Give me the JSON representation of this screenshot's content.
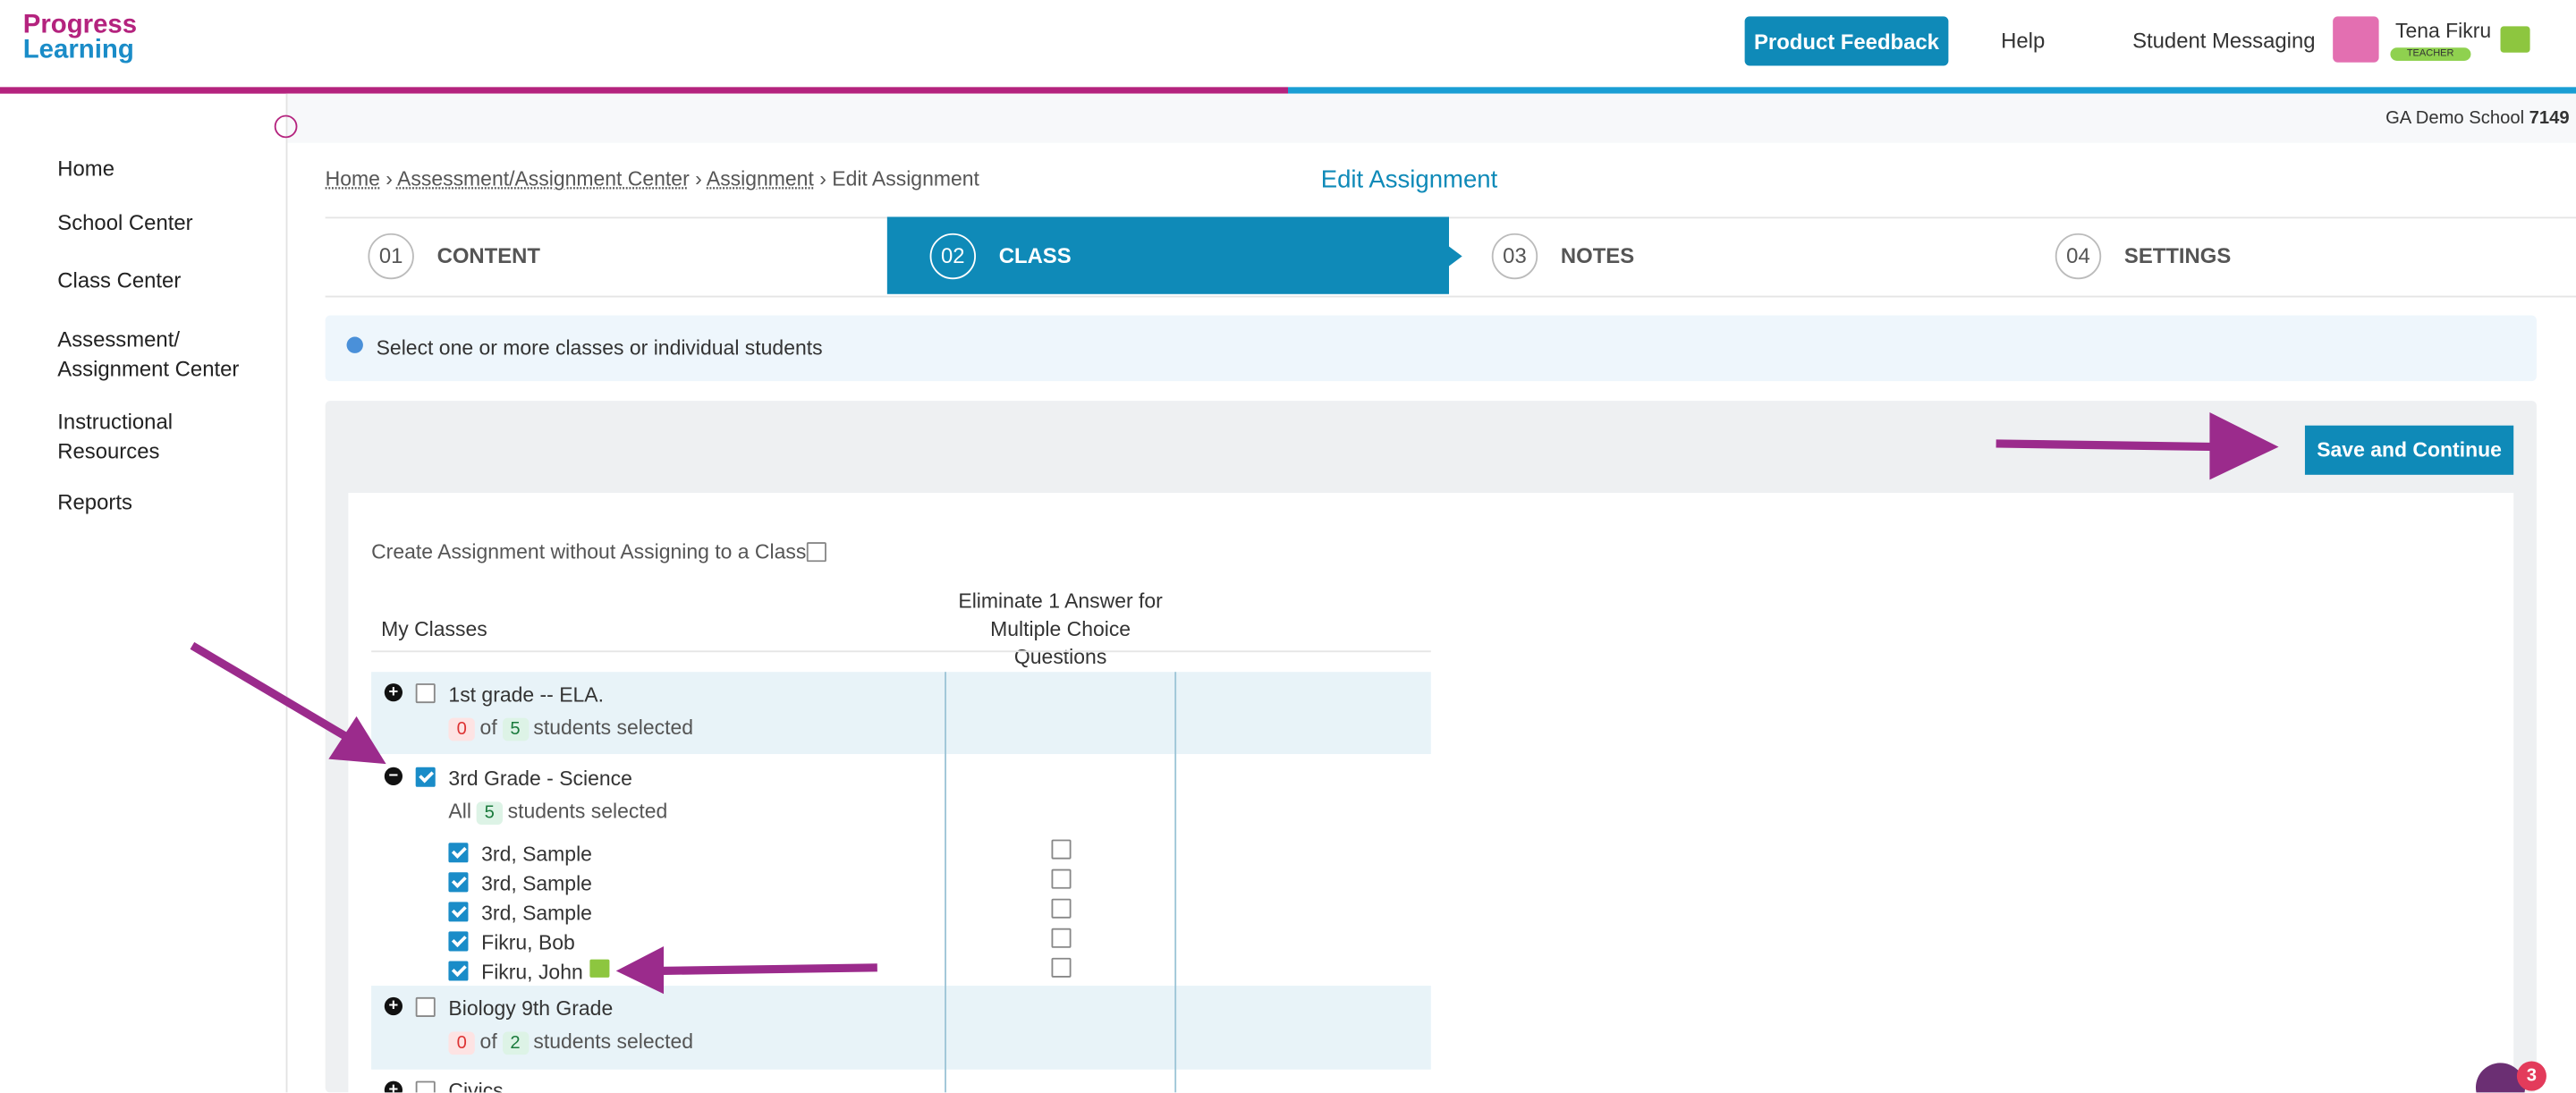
{
  "header": {
    "logo": [
      "Progress",
      "Learning"
    ],
    "feedback_button": "Product Feedback",
    "help": "Help",
    "messaging": "Student Messaging",
    "user_name": "Tena Fikru",
    "user_role": "TEACHER"
  },
  "school": {
    "name": "GA Demo School",
    "id": "7149"
  },
  "sidebar": [
    "Home",
    "School Center",
    "Class Center",
    "Assessment/ Assignment Center",
    "Instructional Resources",
    "Reports"
  ],
  "breadcrumb": [
    "Home",
    "Assessment/Assignment Center",
    "Assignment",
    "Edit Assignment"
  ],
  "page_title": "Edit Assignment",
  "steps": [
    {
      "number": "01",
      "label": "CONTENT"
    },
    {
      "number": "02",
      "label": "CLASS"
    },
    {
      "number": "03",
      "label": "NOTES"
    },
    {
      "number": "04",
      "label": "SETTINGS"
    }
  ],
  "info": "Select one or more classes or individual students",
  "save_button": "Save and Continue",
  "no_class_option": "Create Assignment without Assigning to a Class",
  "columns": [
    "My Classes",
    "Eliminate 1 Answer for Multiple Choice Questions"
  ],
  "classes": [
    {
      "name": "1st grade -- ELA.",
      "selected": "0",
      "of": "of",
      "total": "5",
      "suffix": "students selected"
    },
    {
      "name": "3rd Grade - Science",
      "all": "All",
      "total": "5",
      "suffix": "students selected",
      "students": [
        "3rd, Sample",
        "3rd, Sample",
        "3rd, Sample",
        "Fikru, Bob",
        "Fikru, John"
      ]
    },
    {
      "name": "Biology 9th Grade",
      "selected": "0",
      "of": "of",
      "total": "2",
      "suffix": "students selected"
    },
    {
      "name": "Civics"
    }
  ],
  "notification_count": "3"
}
